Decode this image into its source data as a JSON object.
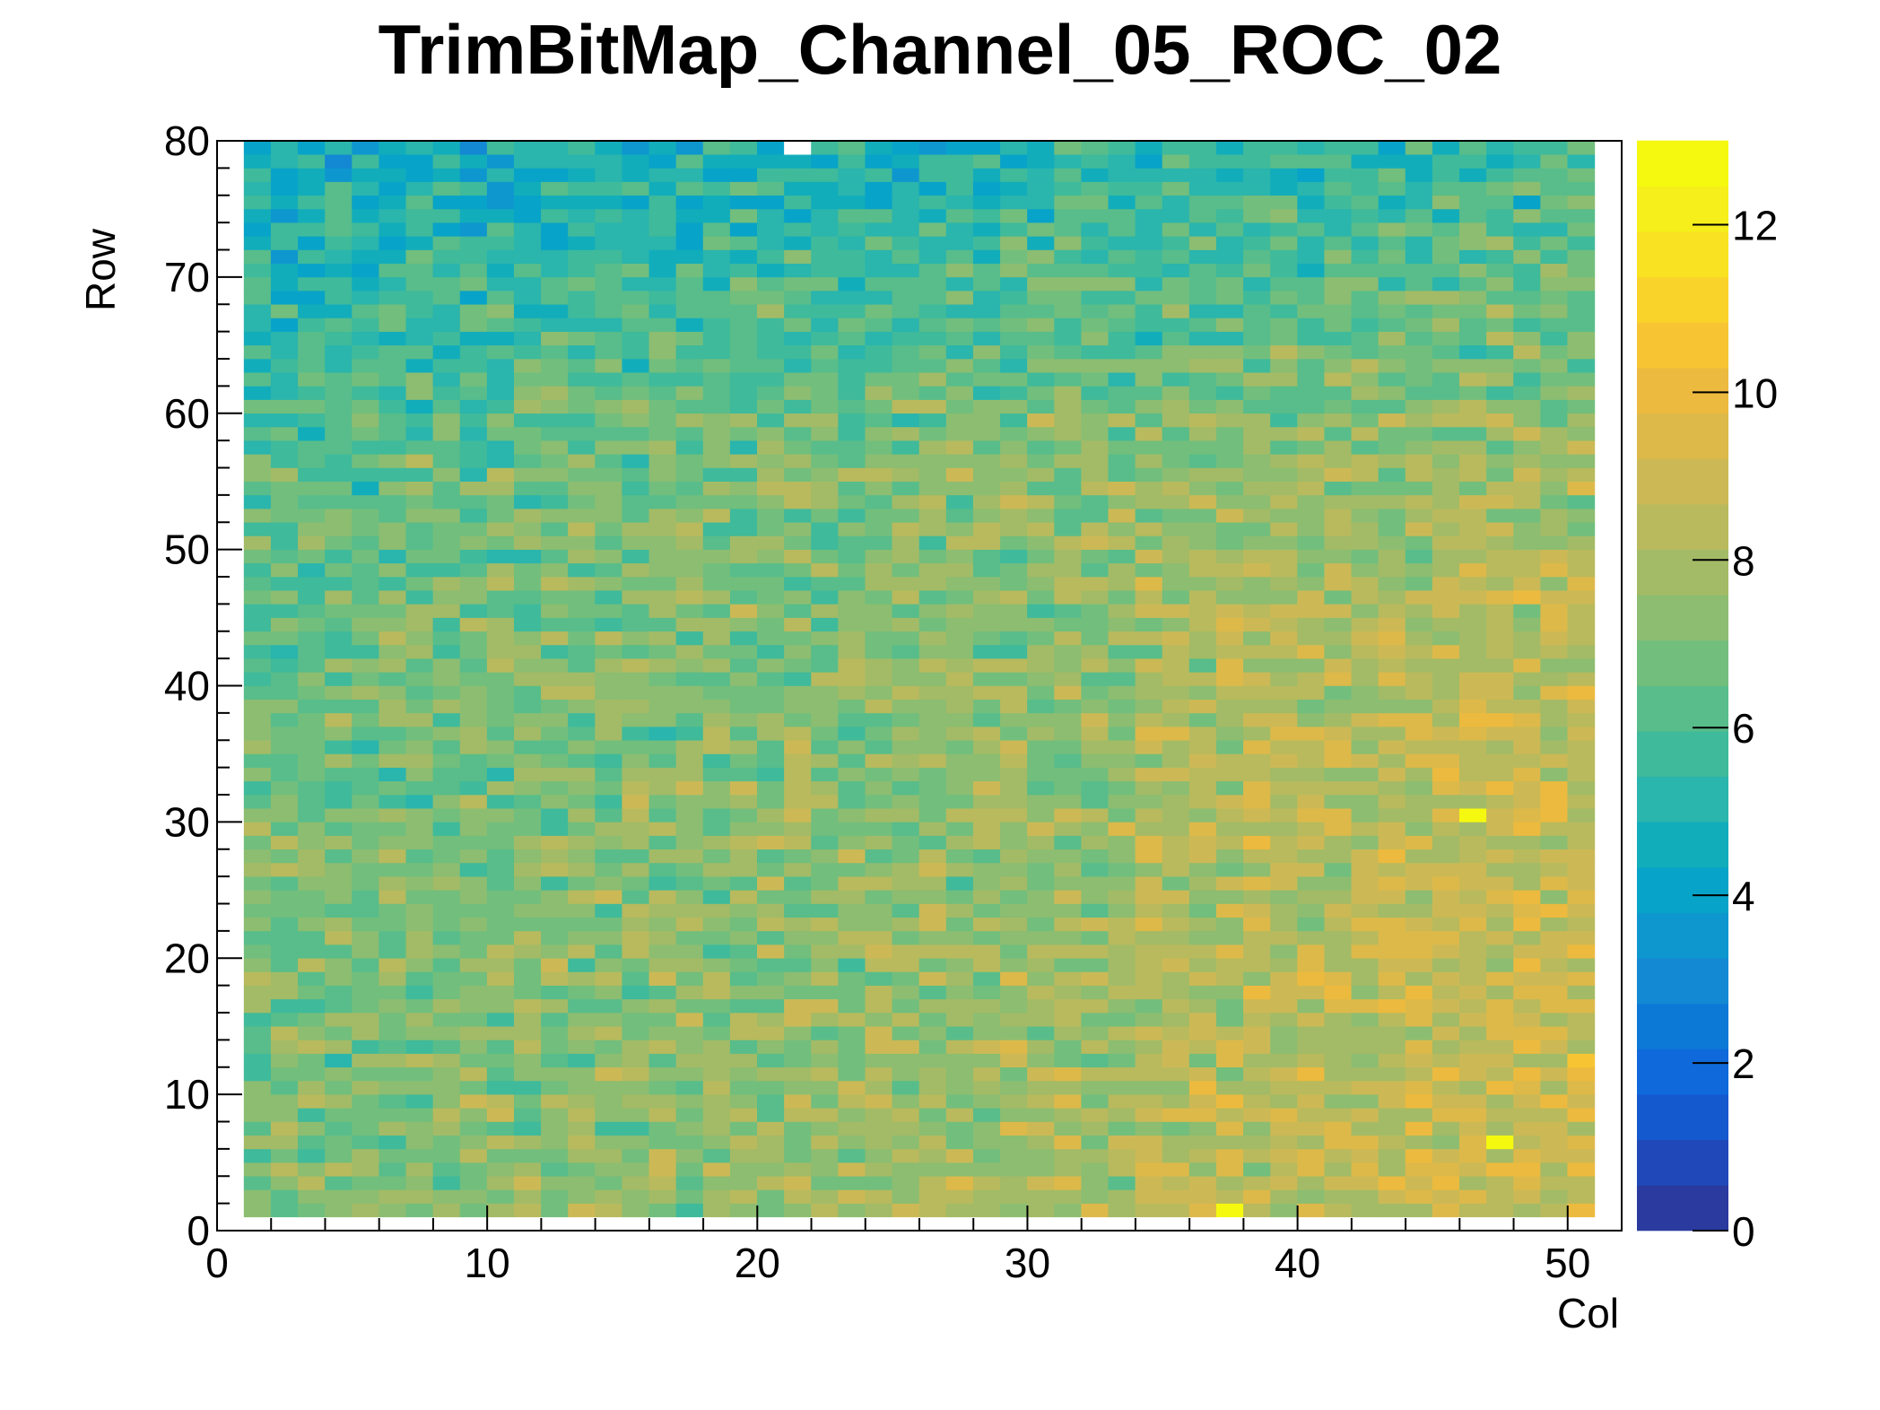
{
  "chart_data": {
    "type": "heatmap",
    "title": "TrimBitMap_Channel_05_ROC_02",
    "xlabel": "Col",
    "ylabel": "Row",
    "xlim": [
      0,
      52
    ],
    "ylim": [
      0,
      80
    ],
    "x_major_ticks": [
      0,
      10,
      20,
      30,
      40,
      50
    ],
    "y_major_ticks": [
      0,
      10,
      20,
      30,
      40,
      50,
      60,
      70,
      80
    ],
    "x_tick_labels": [
      "0",
      "10",
      "20",
      "30",
      "40",
      "50"
    ],
    "y_tick_labels": [
      "0",
      "10",
      "20",
      "30",
      "40",
      "50",
      "60",
      "70",
      "80"
    ],
    "zlim": [
      0,
      13
    ],
    "z_ticks": [
      0,
      2,
      4,
      6,
      8,
      10,
      12
    ],
    "z_tick_labels": [
      "0",
      "2",
      "4",
      "6",
      "8",
      "10",
      "12"
    ],
    "filled_col_range": [
      1,
      50
    ],
    "filled_row_range": [
      1,
      79
    ],
    "cell_value_summary": "Per-pixel trim bit values (cols 1-50, rows 1-79); approx. 3-6 near top rows, rising to approx. 8-11 toward bottom-right; scattered maxima about 12-13, empty bin near col 21, row 79",
    "palette": [
      "#2a3a9e",
      "#2148b8",
      "#1559cf",
      "#0f69da",
      "#0d79d7",
      "#1388d3",
      "#0e97cf",
      "#08a3c8",
      "#12adbb",
      "#2ab5ad",
      "#3fba9b",
      "#58bd8a",
      "#72be7d",
      "#8cbd71",
      "#a3bb66",
      "#b8ba5d",
      "#ccb955",
      "#ddb94a",
      "#ecba3e",
      "#f7c533",
      "#fad32a",
      "#f8e221",
      "#f6ef1b",
      "#f5f90f"
    ],
    "grid": false
  }
}
